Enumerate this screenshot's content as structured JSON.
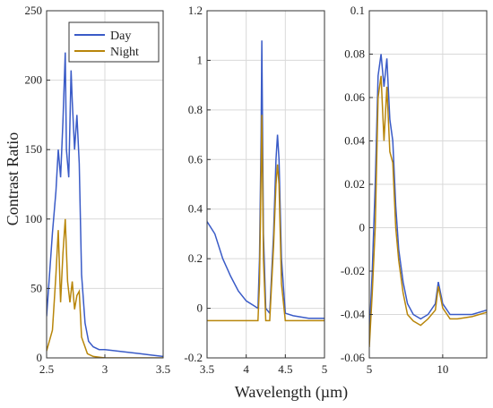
{
  "figure": {
    "ylabel": "Contrast Ratio",
    "xlabel": "Wavelength (µm)"
  },
  "chart_data": [
    {
      "type": "line",
      "xlim": [
        2.5,
        3.5
      ],
      "ylim": [
        0,
        250
      ],
      "xticks": [
        2.5,
        3,
        3.5
      ],
      "xtick_labels": [
        "2.5",
        "3",
        "3.5"
      ],
      "yticks": [
        0,
        50,
        100,
        150,
        200,
        250
      ],
      "ytick_labels": [
        "0",
        "50",
        "100",
        "150",
        "200",
        "250"
      ],
      "grid": true,
      "legend": {
        "position": "top-right",
        "entries": [
          "Day",
          "Night"
        ]
      },
      "series": [
        {
          "name": "Day",
          "color": "#3a5bc7",
          "x": [
            2.5,
            2.55,
            2.58,
            2.6,
            2.62,
            2.64,
            2.66,
            2.67,
            2.69,
            2.71,
            2.72,
            2.74,
            2.76,
            2.78,
            2.8,
            2.83,
            2.86,
            2.9,
            2.95,
            3.0,
            3.1,
            3.2,
            3.3,
            3.4,
            3.5
          ],
          "y": [
            30,
            90,
            120,
            150,
            130,
            170,
            220,
            150,
            130,
            207,
            185,
            150,
            175,
            140,
            60,
            25,
            12,
            8,
            6,
            6,
            5,
            4,
            3,
            2,
            1
          ]
        },
        {
          "name": "Night",
          "color": "#b8860b",
          "x": [
            2.5,
            2.55,
            2.58,
            2.6,
            2.62,
            2.64,
            2.66,
            2.68,
            2.7,
            2.72,
            2.74,
            2.76,
            2.78,
            2.8,
            2.85,
            2.9,
            3.0,
            3.5
          ],
          "y": [
            5,
            20,
            60,
            92,
            40,
            75,
            100,
            55,
            40,
            55,
            35,
            45,
            48,
            15,
            3,
            1,
            0,
            0
          ]
        }
      ]
    },
    {
      "type": "line",
      "xlim": [
        3.5,
        5
      ],
      "ylim": [
        -0.2,
        1.2
      ],
      "xticks": [
        3.5,
        4,
        4.5,
        5
      ],
      "xtick_labels": [
        "3.5",
        "4",
        "4.5",
        "5"
      ],
      "yticks": [
        -0.2,
        0,
        0.2,
        0.4,
        0.6,
        0.8,
        1,
        1.2
      ],
      "ytick_labels": [
        "-0.2",
        "0",
        "0.2",
        "0.4",
        "0.6",
        "0.8",
        "1",
        "1.2"
      ],
      "grid": true,
      "series": [
        {
          "name": "Day",
          "color": "#3a5bc7",
          "x": [
            3.5,
            3.6,
            3.7,
            3.8,
            3.9,
            4.0,
            4.1,
            4.15,
            4.17,
            4.19,
            4.2,
            4.22,
            4.25,
            4.3,
            4.35,
            4.38,
            4.4,
            4.42,
            4.45,
            4.5,
            4.6,
            4.8,
            5.0
          ],
          "y": [
            0.35,
            0.3,
            0.2,
            0.13,
            0.07,
            0.03,
            0.01,
            0.0,
            0.2,
            0.7,
            1.08,
            0.3,
            0.0,
            -0.02,
            0.3,
            0.6,
            0.7,
            0.6,
            0.2,
            -0.02,
            -0.03,
            -0.04,
            -0.04
          ]
        },
        {
          "name": "Night",
          "color": "#b8860b",
          "x": [
            3.5,
            4.0,
            4.15,
            4.17,
            4.19,
            4.2,
            4.22,
            4.25,
            4.3,
            4.35,
            4.38,
            4.4,
            4.42,
            4.45,
            4.5,
            5.0
          ],
          "y": [
            -0.05,
            -0.05,
            -0.05,
            0.1,
            0.55,
            0.78,
            0.2,
            -0.05,
            -0.05,
            0.25,
            0.5,
            0.58,
            0.5,
            0.1,
            -0.05,
            -0.05
          ]
        }
      ]
    },
    {
      "type": "line",
      "xlim": [
        5,
        13
      ],
      "ylim": [
        -0.06,
        0.1
      ],
      "xticks": [
        5,
        10
      ],
      "xtick_labels": [
        "5",
        "10"
      ],
      "yticks": [
        -0.06,
        -0.04,
        -0.02,
        0,
        0.02,
        0.04,
        0.06,
        0.08,
        0.1
      ],
      "ytick_labels": [
        "-0.06",
        "-0.04",
        "-0.02",
        "0",
        "0.02",
        "0.04",
        "0.06",
        "0.08",
        "0.1"
      ],
      "grid": true,
      "series": [
        {
          "name": "Day",
          "color": "#3a5bc7",
          "x": [
            5.0,
            5.2,
            5.4,
            5.6,
            5.8,
            6.0,
            6.2,
            6.4,
            6.6,
            6.8,
            7.0,
            7.3,
            7.6,
            8.0,
            8.5,
            9.0,
            9.5,
            9.7,
            10.0,
            10.5,
            11.0,
            12.0,
            13.0
          ],
          "y": [
            -0.05,
            -0.02,
            0.02,
            0.07,
            0.08,
            0.065,
            0.078,
            0.05,
            0.04,
            0.01,
            -0.01,
            -0.025,
            -0.035,
            -0.04,
            -0.042,
            -0.04,
            -0.035,
            -0.025,
            -0.035,
            -0.04,
            -0.04,
            -0.04,
            -0.038
          ]
        },
        {
          "name": "Night",
          "color": "#b8860b",
          "x": [
            5.0,
            5.2,
            5.4,
            5.6,
            5.8,
            6.0,
            6.2,
            6.4,
            6.6,
            6.8,
            7.0,
            7.3,
            7.6,
            8.0,
            8.5,
            9.0,
            9.5,
            9.7,
            10.0,
            10.5,
            11.0,
            12.0,
            13.0
          ],
          "y": [
            -0.055,
            -0.03,
            0.0,
            0.06,
            0.07,
            0.04,
            0.065,
            0.035,
            0.03,
            0.0,
            -0.015,
            -0.03,
            -0.04,
            -0.043,
            -0.045,
            -0.042,
            -0.038,
            -0.027,
            -0.037,
            -0.042,
            -0.042,
            -0.041,
            -0.039
          ]
        }
      ]
    }
  ]
}
